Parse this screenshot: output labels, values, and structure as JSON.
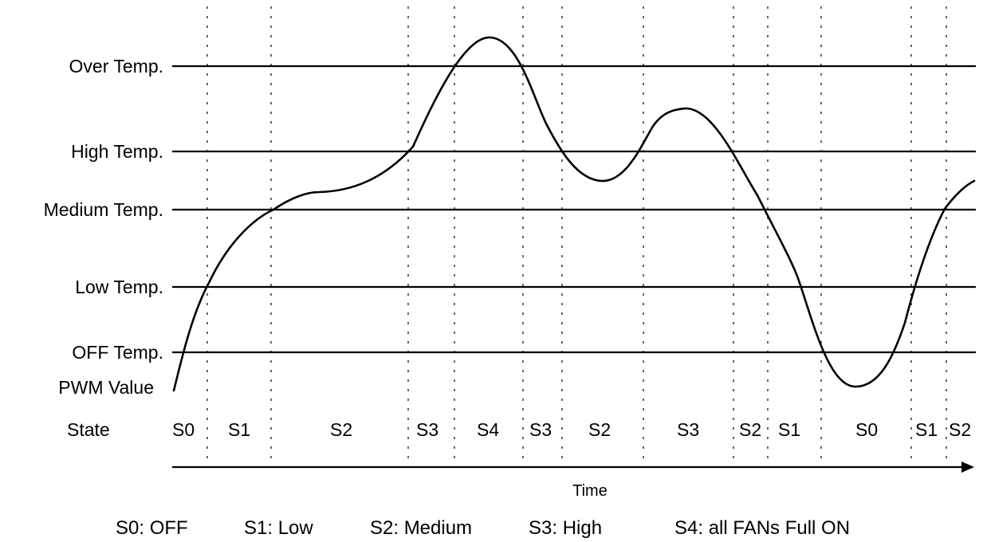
{
  "thresholds": [
    {
      "label": "Over Temp."
    },
    {
      "label": "High Temp."
    },
    {
      "label": "Medium Temp."
    },
    {
      "label": "Low Temp."
    },
    {
      "label": "OFF Temp."
    }
  ],
  "pwm_label": "PWM Value",
  "state_row_label": "State",
  "states": [
    "S0",
    "S1",
    "S2",
    "S3",
    "S4",
    "S3",
    "S2",
    "S3",
    "S2",
    "S1",
    "S0",
    "S1",
    "S2"
  ],
  "time_label": "Time",
  "legend": {
    "s0": "S0: OFF",
    "s1": "S1: Low",
    "s2": "S2: Medium",
    "s3": "S3: High",
    "s4": "S4: all FANs Full ON"
  }
}
